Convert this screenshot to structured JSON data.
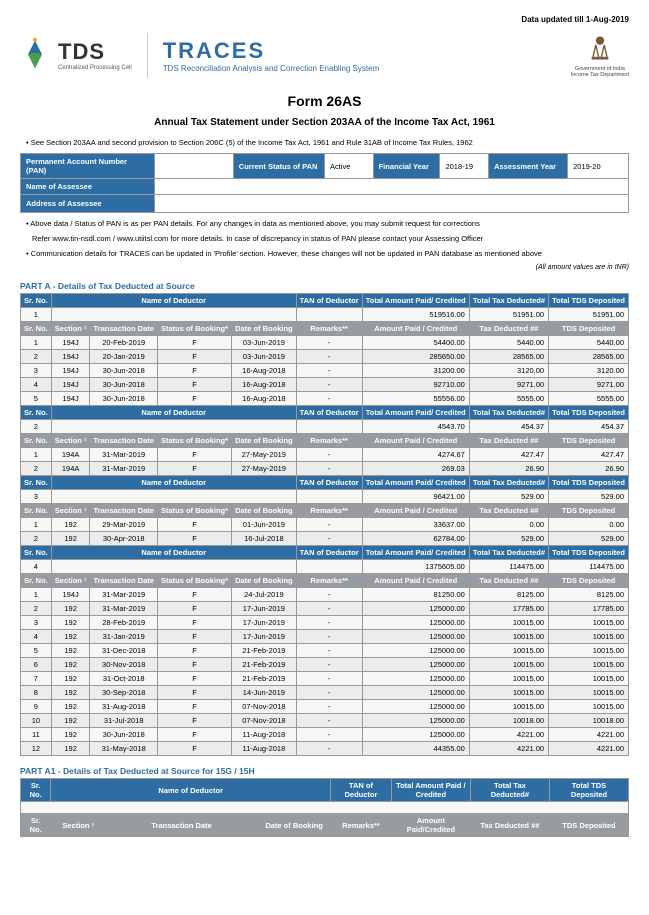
{
  "page": {
    "updated": "Data updated till 1-Aug-2019",
    "tds_main": "TDS",
    "tds_sub": "Centralized Processing Cell",
    "traces_main": "TRACES",
    "traces_sub": "TDS Reconciliation Analysis and Correction Enabling System",
    "gov1": "Government of India",
    "gov2": "Income Tax Department",
    "form_title": "Form 26AS",
    "form_subtitle": "Annual Tax Statement under Section 203AA of the Income Tax Act, 1961",
    "note_top": "See Section 203AA and second provision to Section 206C (5) of the Income Tax Act, 1961 and Rule 31AB of Income Tax Rules, 1962",
    "note1": "Above data / Status of PAN is as per PAN details. For any changes in data as mentioned above, you may submit request for corrections",
    "note1b": "Refer www.tin-nsdl.com / www.utiitsl.com for more details. In case of discrepancy in status of PAN please contact your Assessing Officer",
    "note2": "Communication details for TRACES can be updated in 'Profile' section. However, these changes will not be updated in PAN database as mentioned above",
    "inr_note": "(All amount values are in INR)"
  },
  "info": {
    "pan_label": "Permanent Account Number (PAN)",
    "pan_val": "",
    "status_label": "Current Status of PAN",
    "status_val": "Active",
    "fy_label": "Financial Year",
    "fy_val": "2018-19",
    "ay_label": "Assessment Year",
    "ay_val": "2019-20",
    "name_label": "Name of Assessee",
    "addr_label": "Address of Assessee"
  },
  "hdrs": {
    "srno": "Sr. No.",
    "name_ded": "Name of Deductor",
    "tan": "TAN of Deductor",
    "total_paid": "Total Amount Paid/\nCredited",
    "total_paid2": "Total Amount Paid /\nCredited",
    "total_tax": "Total Tax Deducted#",
    "total_tds": "Total TDS\nDeposited",
    "section": "Section ¹",
    "txn_date": "Transaction Date",
    "status_book": "Status of Booking*",
    "date_book": "Date of Booking",
    "remarks": "Remarks**",
    "amt_paid": "Amount Paid /\nCredited",
    "amt_paid2": "Amount Paid/Credited",
    "tax_ded": "Tax Deducted ##",
    "tds_dep": "TDS Deposited"
  },
  "partA": {
    "title": "PART A - Details of Tax Deducted at Source",
    "g1": {
      "n": "1",
      "paid": "519516.00",
      "tax": "51951.00",
      "dep": "51951.00",
      "rows": [
        {
          "n": "1",
          "sec": "194J",
          "td": "20-Feb-2019",
          "sb": "F",
          "db": "03-Jun-2019",
          "rm": "-",
          "ap": "54400.00",
          "tx": "5440.00",
          "dp": "5440.00"
        },
        {
          "n": "2",
          "sec": "194J",
          "td": "20-Jan-2019",
          "sb": "F",
          "db": "03-Jun-2019",
          "rm": "-",
          "ap": "285650.00",
          "tx": "28565.00",
          "dp": "28565.00"
        },
        {
          "n": "3",
          "sec": "194J",
          "td": "30-Jun-2018",
          "sb": "F",
          "db": "16-Aug-2018",
          "rm": "-",
          "ap": "31200.00",
          "tx": "3120.00",
          "dp": "3120.00"
        },
        {
          "n": "4",
          "sec": "194J",
          "td": "30-Jun-2018",
          "sb": "F",
          "db": "16-Aug-2018",
          "rm": "-",
          "ap": "92710.00",
          "tx": "9271.00",
          "dp": "9271.00"
        },
        {
          "n": "5",
          "sec": "194J",
          "td": "30-Jun-2018",
          "sb": "F",
          "db": "16-Aug-2018",
          "rm": "-",
          "ap": "55556.00",
          "tx": "5555.00",
          "dp": "5555.00"
        }
      ]
    },
    "g2": {
      "n": "2",
      "paid": "4543.70",
      "tax": "454.37",
      "dep": "454.37",
      "rows": [
        {
          "n": "1",
          "sec": "194A",
          "td": "31-Mar-2019",
          "sb": "F",
          "db": "27-May-2019",
          "rm": "-",
          "ap": "4274.67",
          "tx": "427.47",
          "dp": "427.47"
        },
        {
          "n": "2",
          "sec": "194A",
          "td": "31-Mar-2019",
          "sb": "F",
          "db": "27-May-2019",
          "rm": "-",
          "ap": "269.03",
          "tx": "26.90",
          "dp": "26.90"
        }
      ]
    },
    "g3": {
      "n": "3",
      "paid": "96421.00",
      "tax": "529.00",
      "dep": "529.00",
      "rows": [
        {
          "n": "1",
          "sec": "192",
          "td": "29-Mar-2019",
          "sb": "F",
          "db": "01-Jun-2019",
          "rm": "-",
          "ap": "33637.00",
          "tx": "0.00",
          "dp": "0.00"
        },
        {
          "n": "2",
          "sec": "192",
          "td": "30-Apr-2018",
          "sb": "F",
          "db": "16-Jul-2018",
          "rm": "-",
          "ap": "62784.00",
          "tx": "529.00",
          "dp": "529.00"
        }
      ]
    },
    "g4": {
      "n": "4",
      "paid": "1375605.00",
      "tax": "114475.00",
      "dep": "114475.00",
      "rows": [
        {
          "n": "1",
          "sec": "194J",
          "td": "31-Mar-2019",
          "sb": "F",
          "db": "24-Jul-2019",
          "rm": "-",
          "ap": "81250.00",
          "tx": "8125.00",
          "dp": "8125.00"
        },
        {
          "n": "2",
          "sec": "192",
          "td": "31-Mar-2019",
          "sb": "F",
          "db": "17-Jun-2019",
          "rm": "-",
          "ap": "125000.00",
          "tx": "17785.00",
          "dp": "17785.00"
        },
        {
          "n": "3",
          "sec": "192",
          "td": "28-Feb-2019",
          "sb": "F",
          "db": "17-Jun-2019",
          "rm": "-",
          "ap": "125000.00",
          "tx": "10015.00",
          "dp": "10015.00"
        },
        {
          "n": "4",
          "sec": "192",
          "td": "31-Jan-2019",
          "sb": "F",
          "db": "17-Jun-2019",
          "rm": "-",
          "ap": "125000.00",
          "tx": "10015.00",
          "dp": "10015.00"
        },
        {
          "n": "5",
          "sec": "192",
          "td": "31-Dec-2018",
          "sb": "F",
          "db": "21-Feb-2019",
          "rm": "-",
          "ap": "125000.00",
          "tx": "10015.00",
          "dp": "10015.00"
        },
        {
          "n": "6",
          "sec": "192",
          "td": "30-Nov-2018",
          "sb": "F",
          "db": "21-Feb-2019",
          "rm": "-",
          "ap": "125000.00",
          "tx": "10015.00",
          "dp": "10015.00"
        },
        {
          "n": "7",
          "sec": "192",
          "td": "31-Oct-2018",
          "sb": "F",
          "db": "21-Feb-2019",
          "rm": "-",
          "ap": "125000.00",
          "tx": "10015.00",
          "dp": "10015.00"
        },
        {
          "n": "8",
          "sec": "192",
          "td": "30-Sep-2018",
          "sb": "F",
          "db": "14-Jun-2019",
          "rm": "-",
          "ap": "125000.00",
          "tx": "10015.00",
          "dp": "10015.00"
        },
        {
          "n": "9",
          "sec": "192",
          "td": "31-Aug-2018",
          "sb": "F",
          "db": "07-Nov-2018",
          "rm": "-",
          "ap": "125000.00",
          "tx": "10015.00",
          "dp": "10015.00"
        },
        {
          "n": "10",
          "sec": "192",
          "td": "31-Jul-2018",
          "sb": "F",
          "db": "07-Nov-2018",
          "rm": "-",
          "ap": "125000.00",
          "tx": "10018.00",
          "dp": "10018.00"
        },
        {
          "n": "11",
          "sec": "192",
          "td": "30-Jun-2018",
          "sb": "F",
          "db": "11-Aug-2018",
          "rm": "-",
          "ap": "125000.00",
          "tx": "4221.00",
          "dp": "4221.00"
        },
        {
          "n": "12",
          "sec": "192",
          "td": "31-May-2018",
          "sb": "F",
          "db": "11-Aug-2018",
          "rm": "-",
          "ap": "44355.00",
          "tx": "4221.00",
          "dp": "4221.00"
        }
      ]
    }
  },
  "partA1": {
    "title": "PART A1 - Details of Tax Deducted at Source for 15G / 15H"
  },
  "colors": {
    "blue": "#2e6da4",
    "grey": "#989ca0"
  }
}
